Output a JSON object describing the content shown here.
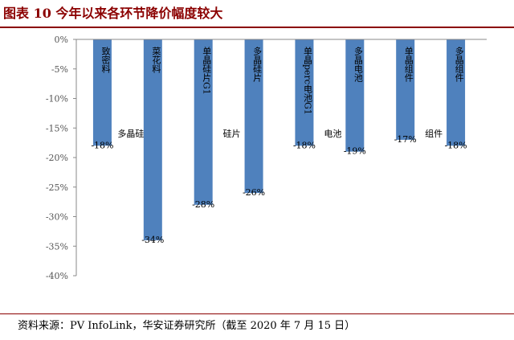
{
  "header": {
    "title": "图表 10 今年以来各环节降价幅度较大"
  },
  "footer": {
    "source": "资料来源：PV InfoLink，华安证券研究所（截至 2020 年 7 月 15 日）"
  },
  "chart_data": {
    "type": "bar",
    "title": "图表 10 今年以来各环节降价幅度较大",
    "categories": [
      "致密料",
      "菜花料",
      "单晶硅片G1",
      "多晶硅片",
      "单晶perc电池G1",
      "多晶电池",
      "单晶组件",
      "多晶组件"
    ],
    "groups": [
      {
        "label": "多晶硅",
        "categories": [
          "致密料",
          "菜花料"
        ]
      },
      {
        "label": "硅片",
        "categories": [
          "单晶硅片G1",
          "多晶硅片"
        ]
      },
      {
        "label": "电池",
        "categories": [
          "单晶perc电池G1",
          "多晶电池"
        ]
      },
      {
        "label": "组件",
        "categories": [
          "单晶组件",
          "多晶组件"
        ]
      }
    ],
    "values": [
      -18,
      -34,
      -28,
      -26,
      -18,
      -19,
      -17,
      -18
    ],
    "data_labels": [
      "-18%",
      "-34%",
      "-28%",
      "-26%",
      "-18%",
      "-19%",
      "-17%",
      "-18%"
    ],
    "ylim": [
      -40,
      0
    ],
    "yticks": [
      "0%",
      "-5%",
      "-10%",
      "-15%",
      "-20%",
      "-25%",
      "-30%",
      "-35%",
      "-40%"
    ],
    "color": "#4f81bd",
    "grid": false,
    "xlabel": "",
    "ylabel": ""
  }
}
